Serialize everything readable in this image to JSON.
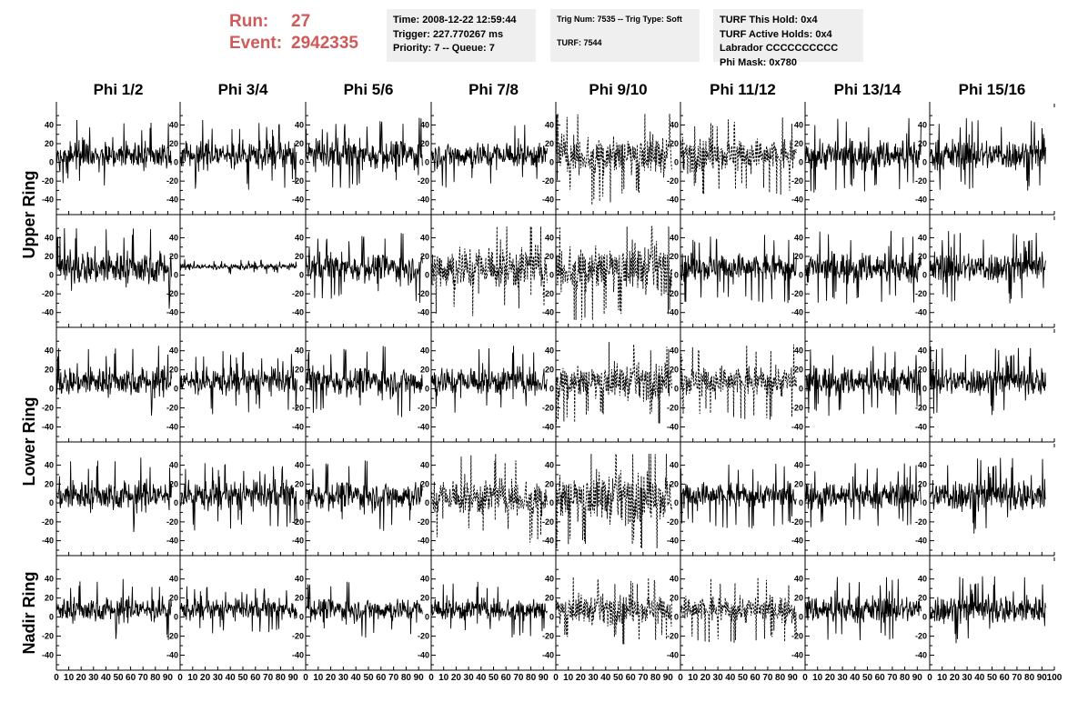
{
  "header": {
    "run_label": "Run:",
    "run_value": "27",
    "event_label": "Event:",
    "event_value": "2942335",
    "accent_color": "#d05a5a"
  },
  "info_panels": [
    [
      "Time: 2008-12-22 12:59:44",
      "Trigger: 227.770267 ms",
      "Priority: 7 -- Queue: 7"
    ],
    [
      "Trig Num: 7535 -- Trig Type: Soft",
      "",
      "TURF: 7544"
    ],
    [
      "TURF This Hold: 0x4",
      "TURF Active Holds: 0x4",
      "Labrador CCCCCCCCCC",
      "Phi Mask: 0x780"
    ]
  ],
  "chart_data": {
    "type": "line",
    "columns": [
      "Phi 1/2",
      "Phi 3/4",
      "Phi 5/6",
      "Phi 7/8",
      "Phi 9/10",
      "Phi 11/12",
      "Phi 13/14",
      "Phi 15/16"
    ],
    "rows": [
      "Upper Ring",
      "Upper Ring",
      "Lower Ring",
      "Lower Ring",
      "Nadir Ring"
    ],
    "row_labels": [
      {
        "text": "Upper Ring",
        "spans": [
          0,
          1
        ]
      },
      {
        "text": "Lower Ring",
        "spans": [
          2,
          3
        ]
      },
      {
        "text": "Nadir Ring",
        "spans": [
          4,
          4
        ]
      }
    ],
    "xlim": [
      0,
      100
    ],
    "ylim": [
      -50,
      55
    ],
    "y_ticks": [
      -40,
      -20,
      0,
      20,
      40
    ],
    "x_ticks": [
      0,
      10,
      20,
      30,
      40,
      50,
      60,
      70,
      80,
      90,
      100
    ],
    "x_tick_labels_per_panel": [
      "0",
      "10",
      "20",
      "30",
      "40",
      "50",
      "60",
      "70",
      "80",
      "90",
      "10"
    ],
    "x_tick_labels_last_panel": [
      "0",
      "10",
      "20",
      "30",
      "40",
      "50",
      "60",
      "70",
      "80",
      "90",
      "100"
    ],
    "samples_per_trace": 260,
    "trace_x_range": [
      0,
      93
    ],
    "dashed_panels": [
      [
        0,
        4
      ],
      [
        0,
        5
      ],
      [
        1,
        3
      ],
      [
        1,
        4
      ],
      [
        2,
        4
      ],
      [
        2,
        5
      ],
      [
        3,
        3
      ],
      [
        3,
        4
      ],
      [
        4,
        4
      ],
      [
        4,
        5
      ]
    ],
    "amplitude": [
      [
        14,
        14,
        15,
        13,
        20,
        16,
        15,
        15
      ],
      [
        17,
        3,
        14,
        22,
        24,
        14,
        15,
        15
      ],
      [
        14,
        13,
        14,
        14,
        17,
        15,
        14,
        14
      ],
      [
        15,
        14,
        14,
        18,
        24,
        13,
        13,
        16
      ],
      [
        12,
        10,
        11,
        11,
        14,
        13,
        13,
        14
      ]
    ],
    "offset": [
      [
        8,
        8,
        8,
        8,
        8,
        8,
        8,
        8
      ],
      [
        8,
        9,
        8,
        8,
        8,
        8,
        8,
        8
      ],
      [
        8,
        8,
        8,
        8,
        8,
        8,
        8,
        8
      ],
      [
        8,
        8,
        8,
        6,
        6,
        8,
        8,
        8
      ],
      [
        8,
        8,
        8,
        8,
        8,
        8,
        8,
        8
      ]
    ],
    "line_color": "#000000"
  }
}
